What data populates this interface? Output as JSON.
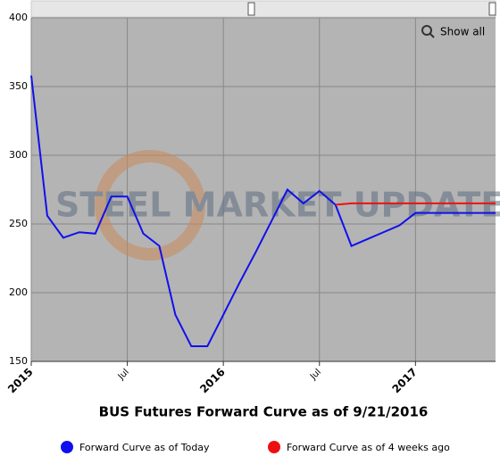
{
  "chart_data": {
    "type": "line",
    "title": "BUS Futures Forward Curve as of 9/21/2016",
    "watermark": "STEEL MARKET UPDATE",
    "button": "Show all",
    "x": [
      "2015-01",
      "2015-02",
      "2015-03",
      "2015-04",
      "2015-05",
      "2015-06",
      "2015-07",
      "2015-08",
      "2015-09",
      "2015-10",
      "2015-11",
      "2015-12",
      "2016-01",
      "2016-02",
      "2016-03",
      "2016-04",
      "2016-05",
      "2016-06",
      "2016-07",
      "2016-08",
      "2016-09",
      "2016-10",
      "2016-11",
      "2016-12",
      "2017-01",
      "2017-02",
      "2017-03",
      "2017-04",
      "2017-05",
      "2017-06"
    ],
    "series": [
      {
        "name": "Forward Curve as of Today",
        "color": "#1010ee",
        "values": [
          358,
          256,
          240,
          244,
          243,
          270,
          270,
          243,
          234,
          184,
          161,
          161,
          184,
          207,
          229,
          252,
          275,
          265,
          274,
          264,
          234,
          239,
          244,
          249,
          258,
          258,
          258,
          258,
          258,
          258
        ]
      },
      {
        "name": "Forward Curve as of 4 weeks ago",
        "color": "#ee1010",
        "values": [
          null,
          null,
          null,
          null,
          null,
          null,
          null,
          null,
          null,
          null,
          null,
          null,
          null,
          null,
          null,
          null,
          null,
          null,
          null,
          264,
          265,
          265,
          265,
          265,
          265,
          265,
          265,
          265,
          265,
          265
        ]
      }
    ],
    "xlim": [
      "2015-01",
      "2017-06"
    ],
    "xticks": [
      {
        "value": "2015-01",
        "label": "2015"
      },
      {
        "value": "2015-07",
        "label": "Jul"
      },
      {
        "value": "2016-01",
        "label": "2016"
      },
      {
        "value": "2016-07",
        "label": "Jul"
      },
      {
        "value": "2017-01",
        "label": "2017"
      }
    ],
    "ylim": [
      150,
      400
    ],
    "yticks": [
      150,
      200,
      250,
      300,
      350,
      400
    ],
    "grid": true
  }
}
